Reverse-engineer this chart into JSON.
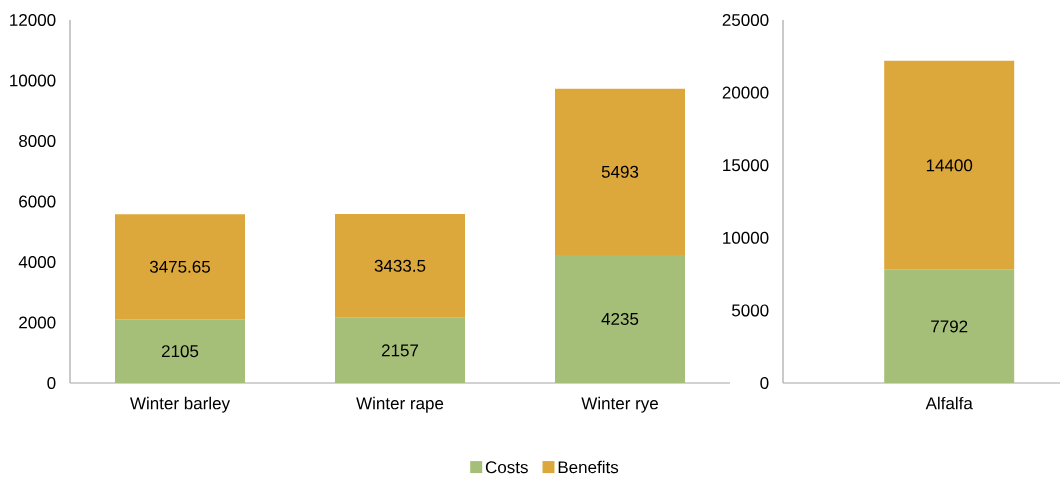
{
  "chart_data": [
    {
      "type": "bar",
      "stacked": true,
      "categories": [
        "Winter barley",
        "Winter rape",
        "Winter rye"
      ],
      "series": [
        {
          "name": "Costs",
          "color": "#a6bf78",
          "values": [
            2105,
            2157,
            4235
          ]
        },
        {
          "name": "Benefits",
          "color": "#dca83c",
          "values": [
            3475.65,
            3433.5,
            5493
          ]
        }
      ],
      "ylim": [
        0,
        12000
      ],
      "yticks": [
        0,
        2000,
        4000,
        6000,
        8000,
        10000,
        12000
      ],
      "data_labels": true,
      "legend": "bottom",
      "grid": false
    },
    {
      "type": "bar",
      "stacked": true,
      "categories": [
        "Alfalfa"
      ],
      "series": [
        {
          "color": "#a6bf78",
          "values": [
            7792
          ]
        },
        {
          "color": "#dca83c",
          "values": [
            14400
          ]
        }
      ],
      "ylim": [
        0,
        25000
      ],
      "yticks": [
        0,
        5000,
        10000,
        15000,
        20000,
        25000
      ],
      "data_labels": true,
      "legend": false,
      "grid": false
    }
  ]
}
